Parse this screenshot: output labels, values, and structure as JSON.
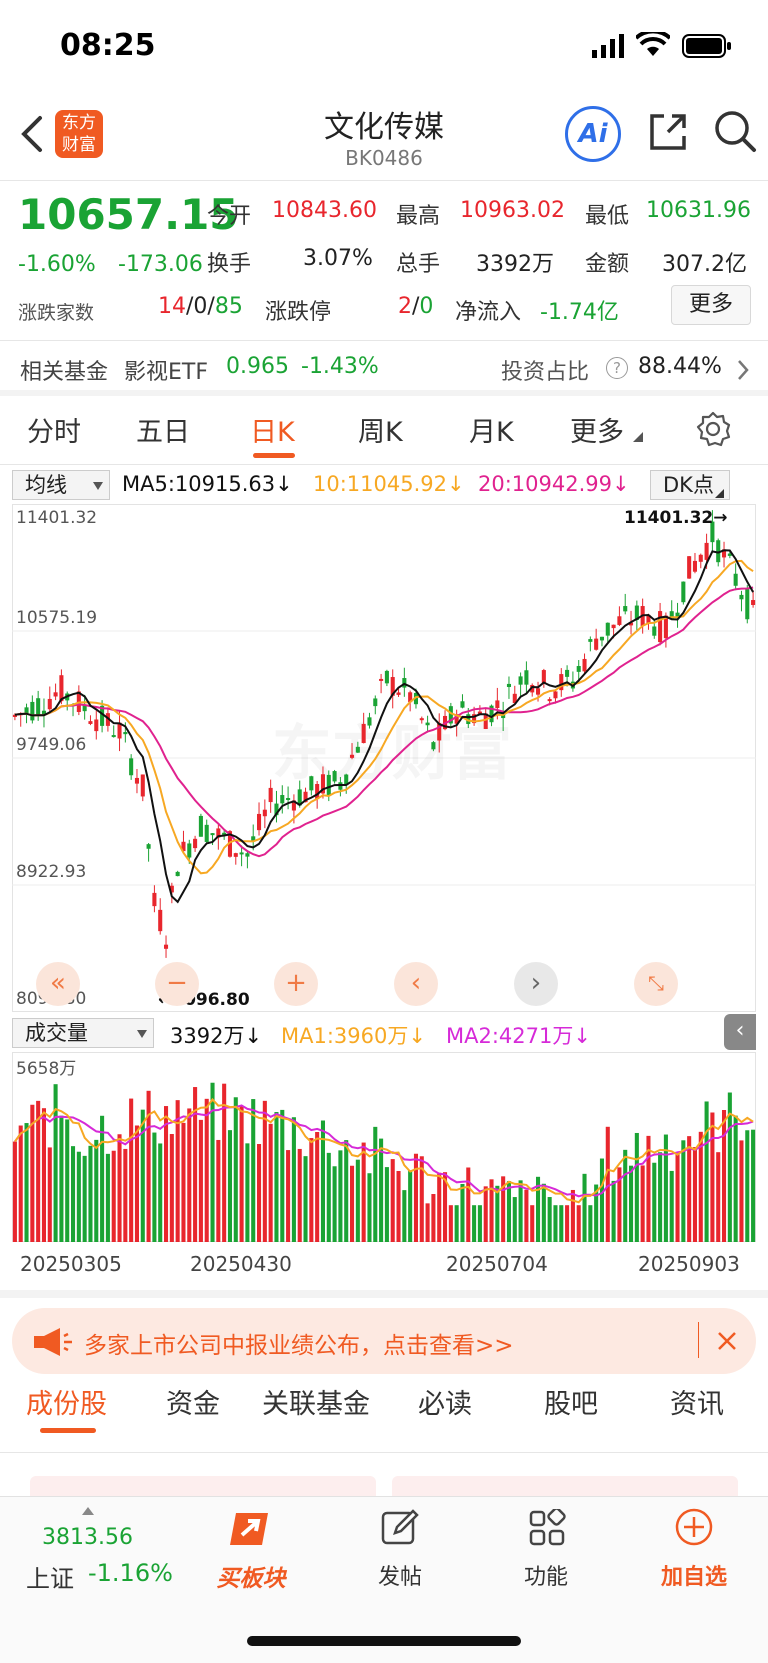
{
  "status_bar": {
    "time": "08:25"
  },
  "header": {
    "logo_text": "东方财富",
    "title": "文化传媒",
    "code": "BK0486",
    "ai_label": "Ai"
  },
  "quote": {
    "price": "10657.15",
    "change_pct": "-1.60%",
    "change": "-173.06",
    "open_label": "今开",
    "open": "10843.60",
    "high_label": "最高",
    "high": "10963.02",
    "low_label": "最低",
    "low": "10631.96",
    "turnover_label": "换手",
    "turnover": "3.07%",
    "volume_label": "总手",
    "volume": "3392万",
    "amount_label": "金额",
    "amount": "307.2亿",
    "updown_label": "涨跌家数",
    "up_count": "14",
    "flat_count": "0",
    "down_count": "85",
    "limit_label": "涨跌停",
    "limit_up": "2",
    "limit_down": "0",
    "netflow_label": "净流入",
    "netflow": "-1.74亿",
    "more_button": "更多",
    "sep": "/"
  },
  "fund": {
    "label": "相关基金",
    "name": "影视ETF",
    "price": "0.965",
    "change": "-1.43%",
    "ratio_label": "投资占比",
    "ratio": "88.44%"
  },
  "period_tabs": [
    {
      "label": "分时",
      "active": false
    },
    {
      "label": "五日",
      "active": false
    },
    {
      "label": "日K",
      "active": true
    },
    {
      "label": "周K",
      "active": false
    },
    {
      "label": "月K",
      "active": false
    },
    {
      "label": "更多",
      "active": false
    }
  ],
  "ma_bar": {
    "selector": "均线",
    "ma5": "MA5:10915.63",
    "ma10": "10:11045.92",
    "ma20": "20:10942.99",
    "dk": "DK点"
  },
  "kline": {
    "y_labels": [
      "11401.32",
      "10575.19",
      "9749.06",
      "8922.93",
      "8096.80"
    ],
    "max_mark": "11401.32→",
    "min_mark": "←8096.80",
    "watermark": "东方财富"
  },
  "volume_bar": {
    "selector": "成交量",
    "vol": "3392万",
    "ma1": "MA1:3960万",
    "ma2": "MA2:4271万",
    "y_label": "5658万"
  },
  "x_labels": [
    "20250305",
    "20250430",
    "20250704",
    "20250903"
  ],
  "banner": {
    "text": "多家上市公司中报业绩公布，点击查看>>"
  },
  "bottom_tabs": [
    {
      "label": "成份股",
      "active": true
    },
    {
      "label": "资金",
      "active": false
    },
    {
      "label": "关联基金",
      "active": false
    },
    {
      "label": "必读",
      "active": false
    },
    {
      "label": "股吧",
      "active": false
    },
    {
      "label": "资讯",
      "active": false
    }
  ],
  "footer": {
    "index_value": "3813.56",
    "index_name": "上证",
    "index_change": "-1.16%",
    "buy_block": "买板块",
    "post": "发帖",
    "function": "功能",
    "add_watch": "加自选"
  },
  "colors": {
    "up": "#e8262d",
    "down": "#1aa334",
    "ma5": "#111111",
    "ma10": "#f7a823",
    "ma20": "#e0228f",
    "accent": "#f05a22"
  }
}
